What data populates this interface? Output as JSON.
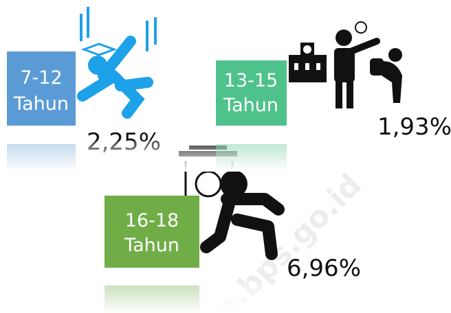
{
  "groups": [
    {
      "age": "7-12",
      "unit": "Tahun",
      "value": "2,25%"
    },
    {
      "age": "13-15",
      "unit": "Tahun",
      "value": "1,93%"
    },
    {
      "age": "16-18",
      "unit": "Tahun",
      "value": "6,96%"
    }
  ],
  "watermark": "a.bps.go.id"
}
